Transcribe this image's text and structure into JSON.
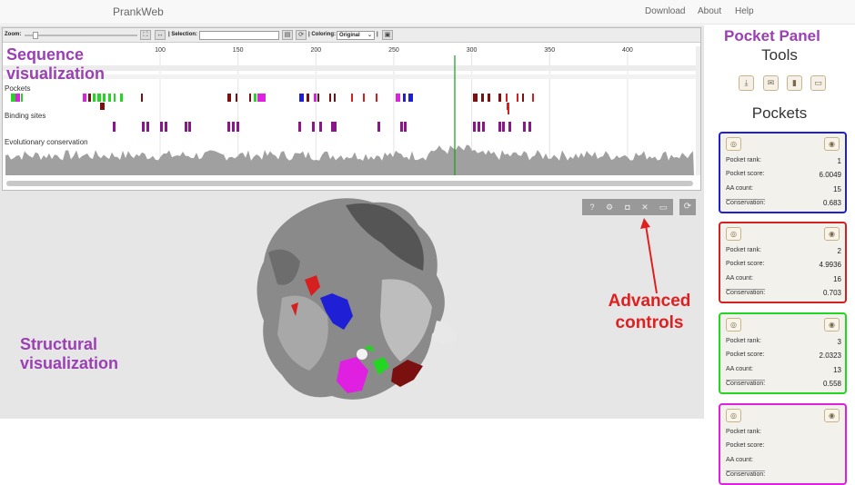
{
  "navbar": {
    "brand": "PrankWeb",
    "links": [
      "Download",
      "About",
      "Help"
    ]
  },
  "toolbar": {
    "zoom_label": "Zoom:",
    "selection_label": "| Selection:",
    "selection_value": "",
    "coloring_label": "| Coloring:",
    "coloring_value": "Original",
    "separator": "|"
  },
  "sequence": {
    "ticks": [
      100,
      150,
      200,
      250,
      300,
      350,
      400
    ],
    "track_labels": [
      "Pockets",
      "Binding sites",
      "Evolutionary conservation"
    ]
  },
  "annotations": {
    "sequence": "Sequence visualization",
    "structural": "Structural visualization",
    "advanced": "Advanced controls",
    "pocket_panel": "Pocket Panel"
  },
  "icons": {
    "advanced_controls": [
      "help-icon",
      "gear-icon",
      "camera-icon",
      "tools-icon",
      "window-icon"
    ],
    "reset": "refresh-icon",
    "tools": [
      "download-icon",
      "mail-icon",
      "clipboard-icon",
      "window-icon"
    ],
    "card_left": "target-icon",
    "card_right": "eye-icon"
  },
  "panel": {
    "tools_title": "Tools",
    "pockets_title": "Pockets",
    "field_labels": {
      "rank": "Pocket rank:",
      "score": "Pocket score:",
      "aa": "AA count:",
      "conservation": "Conservation:"
    }
  },
  "pockets": [
    {
      "rank": "1",
      "score": "6.0049",
      "aa_count": "15",
      "conservation": "0.683",
      "color": "#1f1fd6"
    },
    {
      "rank": "2",
      "score": "4.9936",
      "aa_count": "16",
      "conservation": "0.703",
      "color": "#d62020"
    },
    {
      "rank": "3",
      "score": "2.0323",
      "aa_count": "13",
      "conservation": "0.558",
      "color": "#22d622"
    },
    {
      "rank": "",
      "score": "",
      "aa_count": "",
      "conservation": "",
      "color": "#e020e0"
    }
  ]
}
